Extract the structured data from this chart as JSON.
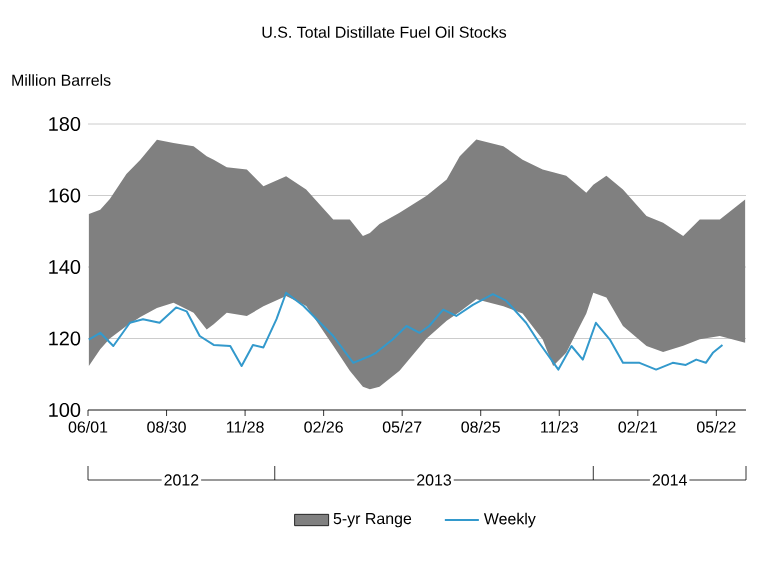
{
  "chart_data": {
    "type": "line",
    "title": "U.S. Total Distillate Fuel Oil Stocks",
    "ylabel": "Million Barrels",
    "xlim": [
      "2012-06-01",
      "2014-06-25"
    ],
    "xticks": [
      {
        "value": "2012-06-01",
        "label": "06/01"
      },
      {
        "value": "2012-08-30",
        "label": "08/30"
      },
      {
        "value": "2012-11-28",
        "label": "11/28"
      },
      {
        "value": "2013-02-26",
        "label": "02/26"
      },
      {
        "value": "2013-05-27",
        "label": "05/27"
      },
      {
        "value": "2013-08-25",
        "label": "08/25"
      },
      {
        "value": "2013-11-23",
        "label": "11/23"
      },
      {
        "value": "2014-02-21",
        "label": "02/21"
      },
      {
        "value": "2014-05-22",
        "label": "05/22"
      }
    ],
    "ylim": [
      100,
      180
    ],
    "yticks": [
      100,
      120,
      140,
      160,
      180
    ],
    "grid": "y",
    "legend": "bottom",
    "annotations": [
      "2012",
      "2013",
      "2014"
    ],
    "series": [
      {
        "name": "5-yr Range",
        "values": [
          null,
          null,
          null,
          null,
          null,
          null,
          null,
          null,
          null,
          null,
          null,
          null,
          null,
          null,
          null,
          null,
          null,
          null,
          null,
          null,
          null,
          null,
          null,
          null,
          null,
          null,
          null,
          null,
          null,
          null,
          null,
          null,
          null,
          null,
          null,
          null,
          null,
          null,
          null,
          null
        ],
        "color": "#808080",
        "x": [
          "2012-06-02",
          "2012-06-15",
          "2012-06-26",
          "2012-07-15",
          "2012-07-31",
          "2012-08-19",
          "2012-09-07",
          "2012-09-30",
          "2012-10-15",
          "2012-10-23",
          "2012-11-07",
          "2012-11-30",
          "2012-12-19",
          "2013-01-14",
          "2013-02-06",
          "2013-03-09",
          "2013-03-28",
          "2013-04-12",
          "2013-04-20",
          "2013-05-01",
          "2013-05-24",
          "2013-06-24",
          "2013-07-17",
          "2013-08-01",
          "2013-08-20",
          "2013-09-20",
          "2013-10-12",
          "2013-11-04",
          "2013-11-16",
          "2013-12-01",
          "2013-12-24",
          "2014-01-01",
          "2014-01-16",
          "2014-02-04",
          "2014-03-03",
          "2014-03-22",
          "2014-04-14",
          "2014-05-03",
          "2014-05-26",
          "2014-06-24"
        ],
        "upper": [
          154.8,
          156,
          159,
          166,
          170,
          175.6,
          174.7,
          173.8,
          171,
          170,
          167.9,
          167.3,
          162.6,
          165.4,
          161.7,
          153.3,
          153.3,
          148.7,
          149.5,
          152,
          155.2,
          159.9,
          164.5,
          171,
          175.7,
          173.8,
          170,
          167.3,
          166.5,
          165.5,
          160.8,
          163,
          165.5,
          161.7,
          154.3,
          152.4,
          148.7,
          153.3,
          153.3,
          158.9
        ],
        "lower": [
          112.3,
          117,
          120,
          123.5,
          126,
          128.5,
          130,
          127.2,
          122.5,
          124,
          127.2,
          126.3,
          129,
          131.9,
          129.1,
          118,
          111,
          106.5,
          105.8,
          106.5,
          111,
          120,
          125,
          127.5,
          131,
          129,
          127,
          119.7,
          112.3,
          116,
          127,
          132.8,
          131.5,
          123.5,
          117.9,
          116.2,
          118,
          119.8,
          120.7,
          118.8
        ]
      },
      {
        "name": "Weekly",
        "color": "#3399cc",
        "x": [
          "2012-06-02",
          "2012-06-15",
          "2012-06-30",
          "2012-07-19",
          "2012-08-03",
          "2012-08-22",
          "2012-09-10",
          "2012-09-22",
          "2012-10-07",
          "2012-10-23",
          "2012-11-11",
          "2012-11-24",
          "2012-12-07",
          "2012-12-19",
          "2013-01-03",
          "2013-01-14",
          "2013-02-03",
          "2013-02-22",
          "2013-03-09",
          "2013-04-01",
          "2013-04-20",
          "2013-04-27",
          "2013-05-16",
          "2013-06-01",
          "2013-06-16",
          "2013-06-27",
          "2013-07-13",
          "2013-07-28",
          "2013-08-16",
          "2013-09-08",
          "2013-09-23",
          "2013-10-16",
          "2013-10-31",
          "2013-11-22",
          "2013-12-07",
          "2013-12-20",
          "2014-01-04",
          "2014-01-20",
          "2014-02-04",
          "2014-02-23",
          "2014-03-14",
          "2014-04-02",
          "2014-04-17",
          "2014-04-29",
          "2014-05-10",
          "2014-05-18",
          "2014-05-29"
        ],
        "values": [
          119.7,
          121.6,
          117.9,
          124.4,
          125.4,
          124.4,
          128.7,
          127.6,
          120.7,
          118.2,
          117.9,
          112.3,
          118.2,
          117.5,
          125.4,
          132.8,
          129.1,
          124.4,
          120.7,
          113.2,
          115.1,
          116,
          119.7,
          123.5,
          121.6,
          123.5,
          128.1,
          126.3,
          129.4,
          132.4,
          130.6,
          124.4,
          118.8,
          111.3,
          117.9,
          114.1,
          124.4,
          119.7,
          113.2,
          113.2,
          111.3,
          113.2,
          112.6,
          114.1,
          113.2,
          116,
          118.2
        ]
      }
    ]
  }
}
